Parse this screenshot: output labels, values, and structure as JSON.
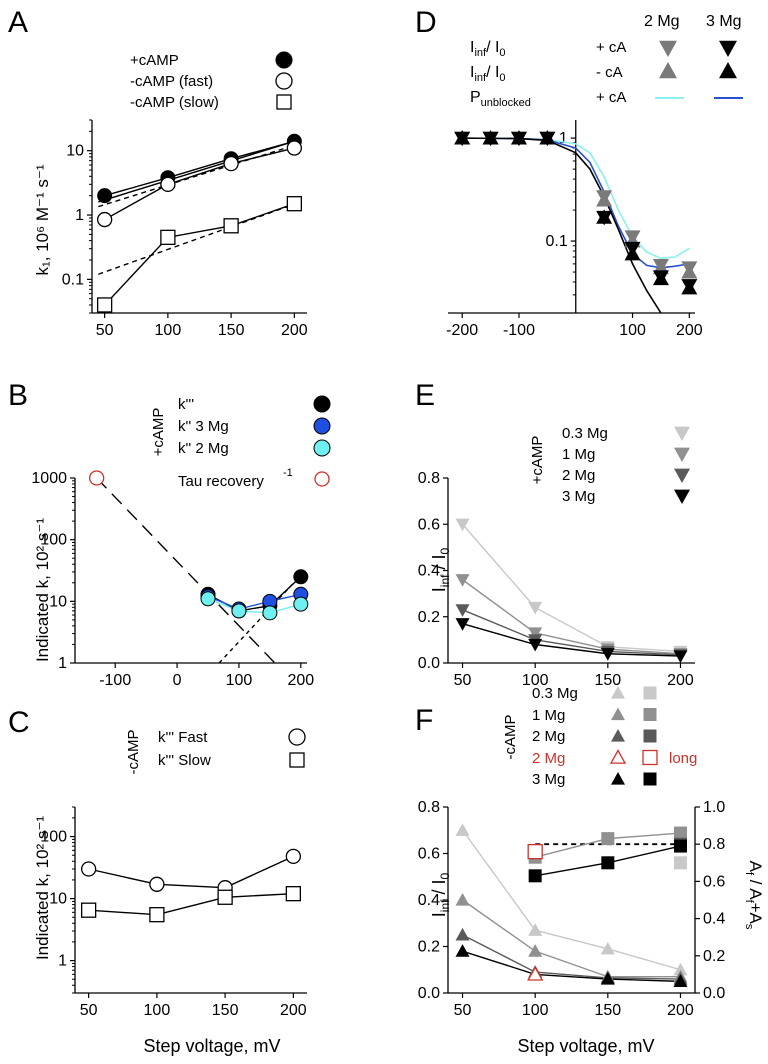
{
  "chart_data": [
    {
      "id": "A",
      "type": "line",
      "panel_letter": "A",
      "scale": "log",
      "xlabel": "",
      "ylabel": "k₁, 10⁶ M⁻¹ s⁻¹",
      "xlim": [
        40,
        210
      ],
      "ylim": [
        0.03,
        30
      ],
      "xticks": [
        50,
        100,
        150,
        200
      ],
      "xtick_labels": [
        "50",
        "100",
        "150",
        "200"
      ],
      "yticks": [
        0.1,
        1,
        10
      ],
      "ytick_labels": [
        "0.1",
        "1",
        "10"
      ],
      "series": [
        {
          "name": "+cAMP",
          "marker": "circle-filled",
          "color": "#000000",
          "x": [
            50,
            100,
            150,
            200
          ],
          "y": [
            2.0,
            3.8,
            7.5,
            14
          ]
        },
        {
          "name": "-cAMP (fast)",
          "marker": "circle-open",
          "color": "#000000",
          "x": [
            50,
            100,
            150,
            200
          ],
          "y": [
            0.85,
            3.0,
            6.3,
            11
          ]
        },
        {
          "name": "-cAMP (slow)",
          "marker": "square-open",
          "color": "#000000",
          "x": [
            50,
            100,
            150,
            200
          ],
          "y": [
            0.04,
            0.45,
            0.68,
            1.5
          ]
        }
      ],
      "fits": [
        {
          "x": [
            45,
            205
          ],
          "y": [
            1.6,
            15
          ],
          "dash": false
        },
        {
          "x": [
            45,
            205
          ],
          "y": [
            1.35,
            13
          ],
          "dash": true
        },
        {
          "x": [
            45,
            205
          ],
          "y": [
            0.12,
            1.6
          ],
          "dash": true
        }
      ],
      "legend_texts": [
        "+cAMP",
        "-cAMP (fast)",
        "-cAMP (slow)"
      ]
    },
    {
      "id": "B",
      "type": "line",
      "panel_letter": "B",
      "scale": "log",
      "xlabel": "",
      "ylabel": "Indicated k, 10² s⁻¹",
      "xlim": [
        -165,
        210
      ],
      "ylim": [
        1,
        1000
      ],
      "xticks": [
        -100,
        0,
        100,
        200
      ],
      "xtick_labels": [
        "-100",
        "0",
        "100",
        "200"
      ],
      "yticks": [
        1,
        10,
        100,
        1000
      ],
      "ytick_labels": [
        "1",
        "10",
        "100",
        "1000"
      ],
      "series": [
        {
          "name": "k'''",
          "marker": "circle-filled",
          "color": "#000000",
          "x": [
            50,
            100,
            150,
            200
          ],
          "y": [
            13,
            7,
            8.5,
            25
          ]
        },
        {
          "name": "k'' 3 Mg",
          "marker": "circle-filled",
          "color": "#1e4fe0",
          "x": [
            50,
            100,
            150,
            200
          ],
          "y": [
            12,
            7.5,
            10,
            13
          ]
        },
        {
          "name": "k'' 2 Mg",
          "marker": "circle-filled",
          "color": "#6ff0f0",
          "x": [
            50,
            100,
            150,
            200
          ],
          "y": [
            11,
            7,
            6.5,
            9
          ]
        },
        {
          "name": "Tau recovery⁻¹",
          "marker": "circle-open",
          "color": "#d0302a",
          "x": [
            -130
          ],
          "y": [
            1000
          ]
        }
      ],
      "fits": [
        {
          "x": [
            -130,
            158
          ],
          "y": [
            1000,
            1
          ],
          "dash": "long"
        },
        {
          "x": [
            68,
            205
          ],
          "y": [
            1,
            30
          ],
          "dash": "short"
        }
      ],
      "side_label": "+cAMP",
      "legend_texts": [
        "k'''",
        "k''  3 Mg",
        "k''  2 Mg",
        "Tau recovery"
      ],
      "legend_superscript": "-1"
    },
    {
      "id": "C",
      "type": "line",
      "panel_letter": "C",
      "scale": "log",
      "xlabel": "Step voltage, mV",
      "ylabel": "Indicated k, 10² s⁻¹",
      "xlim": [
        40,
        210
      ],
      "ylim": [
        0.3,
        300
      ],
      "xticks": [
        50,
        100,
        150,
        200
      ],
      "xtick_labels": [
        "50",
        "100",
        "150",
        "200"
      ],
      "yticks": [
        1,
        10,
        100
      ],
      "ytick_labels": [
        "1",
        "10",
        "100"
      ],
      "series": [
        {
          "name": "k''' Fast",
          "marker": "circle-open",
          "color": "#000000",
          "x": [
            50,
            100,
            150,
            200
          ],
          "y": [
            30,
            17,
            15,
            48
          ]
        },
        {
          "name": "k''' Slow",
          "marker": "square-open",
          "color": "#000000",
          "x": [
            50,
            100,
            150,
            200
          ],
          "y": [
            6.5,
            5.5,
            10.5,
            12
          ]
        }
      ],
      "side_label": "-cAMP",
      "legend_texts": [
        "k'''  Fast",
        "k'''  Slow"
      ]
    },
    {
      "id": "D",
      "type": "line",
      "panel_letter": "D",
      "scale": "log",
      "xlabel": "",
      "ylabel": "",
      "xlim": [
        -225,
        210
      ],
      "ylim": [
        0.02,
        1.5
      ],
      "xticks": [
        -200,
        -100,
        100,
        200
      ],
      "xtick_labels": [
        "-200",
        "-100",
        "100",
        "200"
      ],
      "yticks": [
        0.1,
        1
      ],
      "ytick_labels": [
        "0.1",
        "1"
      ],
      "series": [
        {
          "name": "2 Mg + cA",
          "marker": "tri-down",
          "color": "#7a7a7a",
          "x": [
            -200,
            -150,
            -100,
            -50,
            50,
            100,
            150,
            200
          ],
          "y": [
            1,
            1,
            1,
            1,
            0.27,
            0.11,
            0.058,
            0.055
          ]
        },
        {
          "name": "2 Mg - cA",
          "marker": "tri-up",
          "color": "#7a7a7a",
          "x": [
            -200,
            -150,
            -100,
            -50,
            50,
            100,
            150,
            200
          ],
          "y": [
            1,
            1,
            1,
            1,
            0.25,
            0.1,
            0.055,
            0.05
          ]
        },
        {
          "name": "3 Mg + cA",
          "marker": "tri-down",
          "color": "#000000",
          "x": [
            -200,
            -150,
            -100,
            -50,
            50,
            100,
            150,
            200
          ],
          "y": [
            1,
            1,
            1,
            1,
            0.17,
            0.085,
            0.045,
            0.037
          ]
        },
        {
          "name": "3 Mg - cA",
          "marker": "tri-up",
          "color": "#000000",
          "x": [
            -200,
            -150,
            -100,
            -50,
            50,
            100,
            150,
            200
          ],
          "y": [
            1,
            1,
            1,
            1,
            0.17,
            0.075,
            0.043,
            0.035
          ]
        }
      ],
      "curves": [
        {
          "color": "#8af0f0",
          "x": [
            -200,
            -100,
            -50,
            0,
            25,
            50,
            75,
            100,
            125,
            150,
            175,
            200
          ],
          "y": [
            1,
            0.99,
            0.97,
            0.88,
            0.72,
            0.42,
            0.2,
            0.11,
            0.078,
            0.068,
            0.07,
            0.085
          ]
        },
        {
          "color": "#2a4fcf",
          "x": [
            -200,
            -100,
            -50,
            0,
            25,
            50,
            75,
            100,
            125,
            150,
            175,
            200
          ],
          "y": [
            1,
            0.99,
            0.96,
            0.8,
            0.58,
            0.3,
            0.14,
            0.075,
            0.058,
            0.055,
            0.057,
            0.06
          ]
        },
        {
          "color": "#000000",
          "x": [
            -200,
            -100,
            -50,
            0,
            25,
            50,
            75,
            100,
            125,
            150
          ],
          "y": [
            1,
            0.99,
            0.95,
            0.72,
            0.5,
            0.27,
            0.13,
            0.06,
            0.033,
            0.02
          ]
        }
      ],
      "legend": {
        "head_2mg": "2 Mg",
        "head_3mg": "3 Mg",
        "row1": "I",
        "row1_sub": "inf",
        "row1_mid": "/ I",
        "row1_sub2": "0",
        "row1_cond": "+ cA",
        "row2": "I",
        "row2_sub": "inf",
        "row2_mid": "/ I",
        "row2_sub2": "0",
        "row2_cond": "- cA",
        "row3": "P",
        "row3_sub": "unblocked",
        "row3_cond": "+ cA"
      }
    },
    {
      "id": "E",
      "type": "line",
      "panel_letter": "E",
      "scale": "linear",
      "xlabel": "",
      "ylabel": "I",
      "ylabel_sub": "inf",
      "ylabel_mid": " / I",
      "ylabel_sub2": "0",
      "xlim": [
        40,
        210
      ],
      "ylim": [
        0,
        0.8
      ],
      "xticks": [
        50,
        100,
        150,
        200
      ],
      "xtick_labels": [
        "50",
        "100",
        "150",
        "200"
      ],
      "yticks": [
        0,
        0.2,
        0.4,
        0.6,
        0.8
      ],
      "ytick_labels": [
        "0.0",
        "0.2",
        "0.4",
        "0.6",
        "0.8"
      ],
      "series": [
        {
          "name": "0.3 Mg",
          "marker": "tri-down",
          "color": "#c8c8c8",
          "x": [
            50,
            100,
            150,
            200
          ],
          "y": [
            0.6,
            0.24,
            0.07,
            0.05
          ]
        },
        {
          "name": "1 Mg",
          "marker": "tri-down",
          "color": "#909090",
          "x": [
            50,
            100,
            150,
            200
          ],
          "y": [
            0.36,
            0.13,
            0.06,
            0.04
          ]
        },
        {
          "name": "2 Mg",
          "marker": "tri-down",
          "color": "#5a5a5a",
          "x": [
            50,
            100,
            150,
            200
          ],
          "y": [
            0.23,
            0.1,
            0.05,
            0.035
          ]
        },
        {
          "name": "3 Mg",
          "marker": "tri-down",
          "color": "#000000",
          "x": [
            50,
            100,
            150,
            200
          ],
          "y": [
            0.17,
            0.08,
            0.04,
            0.03
          ]
        }
      ],
      "side_label": "+cAMP",
      "legend_texts": [
        "0.3 Mg",
        "1 Mg",
        "2 Mg",
        "3 Mg"
      ]
    },
    {
      "id": "F",
      "type": "line",
      "panel_letter": "F",
      "scale": "linear",
      "xlabel": "Step voltage, mV",
      "ylabel": "I",
      "ylabel_sub": "inf",
      "ylabel_mid": " / I",
      "ylabel_sub2": "0",
      "y2label": "A",
      "y2label_sub": "f",
      "y2label_mid": " / A",
      "y2label_sub2": "f",
      "y2label_end": "+A",
      "y2label_sub3": "s",
      "xlim": [
        40,
        210
      ],
      "ylim": [
        0,
        0.8
      ],
      "y2lim": [
        0,
        1.0
      ],
      "xticks": [
        50,
        100,
        150,
        200
      ],
      "xtick_labels": [
        "50",
        "100",
        "150",
        "200"
      ],
      "yticks": [
        0,
        0.2,
        0.4,
        0.6,
        0.8
      ],
      "ytick_labels": [
        "0.0",
        "0.2",
        "0.4",
        "0.6",
        "0.8"
      ],
      "y2ticks": [
        0,
        0.2,
        0.4,
        0.6,
        0.8,
        1.0
      ],
      "y2tick_labels": [
        "0.0",
        "0.2",
        "0.4",
        "0.6",
        "0.8",
        "1.0"
      ],
      "series": [
        {
          "name": "0.3 Mg",
          "marker": "tri-up",
          "color": "#c8c8c8",
          "axis": "left",
          "x": [
            50,
            100,
            150,
            200
          ],
          "y": [
            0.7,
            0.27,
            0.19,
            0.1
          ]
        },
        {
          "name": "1 Mg",
          "marker": "tri-up",
          "color": "#909090",
          "axis": "left",
          "x": [
            50,
            100,
            150,
            200
          ],
          "y": [
            0.4,
            0.18,
            0.07,
            0.07
          ]
        },
        {
          "name": "2 Mg",
          "marker": "tri-up",
          "color": "#5a5a5a",
          "axis": "left",
          "x": [
            50,
            100,
            150,
            200
          ],
          "y": [
            0.25,
            0.09,
            0.065,
            0.06
          ]
        },
        {
          "name": "3 Mg",
          "marker": "tri-up",
          "color": "#000000",
          "axis": "left",
          "x": [
            50,
            100,
            150,
            200
          ],
          "y": [
            0.18,
            0.08,
            0.06,
            0.05
          ]
        },
        {
          "name": "2 Mg long",
          "marker": "tri-up-open",
          "color": "#d0302a",
          "axis": "left",
          "x": [
            100
          ],
          "y": [
            0.08
          ]
        },
        {
          "name": "0.3 Mg",
          "marker": "square",
          "color": "#c8c8c8",
          "axis": "right",
          "x": [
            200
          ],
          "y": [
            0.7
          ]
        },
        {
          "name": "1 Mg",
          "marker": "square",
          "color": "#909090",
          "axis": "right",
          "x": [
            100,
            150,
            200
          ],
          "y": [
            0.73,
            0.83,
            0.86
          ]
        },
        {
          "name": "2 Mg",
          "marker": "square",
          "color": "#5a5a5a",
          "axis": "right",
          "x": [
            200
          ],
          "y": [
            0.8
          ]
        },
        {
          "name": "3 Mg",
          "marker": "square",
          "color": "#000000",
          "axis": "right",
          "x": [
            100,
            150,
            200
          ],
          "y": [
            0.63,
            0.7,
            0.79
          ]
        },
        {
          "name": "2 Mg long",
          "marker": "square-open",
          "color": "#d0302a",
          "axis": "right",
          "x": [
            100
          ],
          "y": [
            0.76
          ]
        }
      ],
      "reference_line": {
        "axis": "right",
        "x": [
          100,
          200
        ],
        "y": 0.8,
        "dash": true
      },
      "side_label": "-cAMP",
      "legend_texts": [
        "0.3 Mg",
        "1 Mg",
        "2 Mg",
        "2 Mg",
        "3 Mg"
      ],
      "legend_long": "long"
    }
  ]
}
